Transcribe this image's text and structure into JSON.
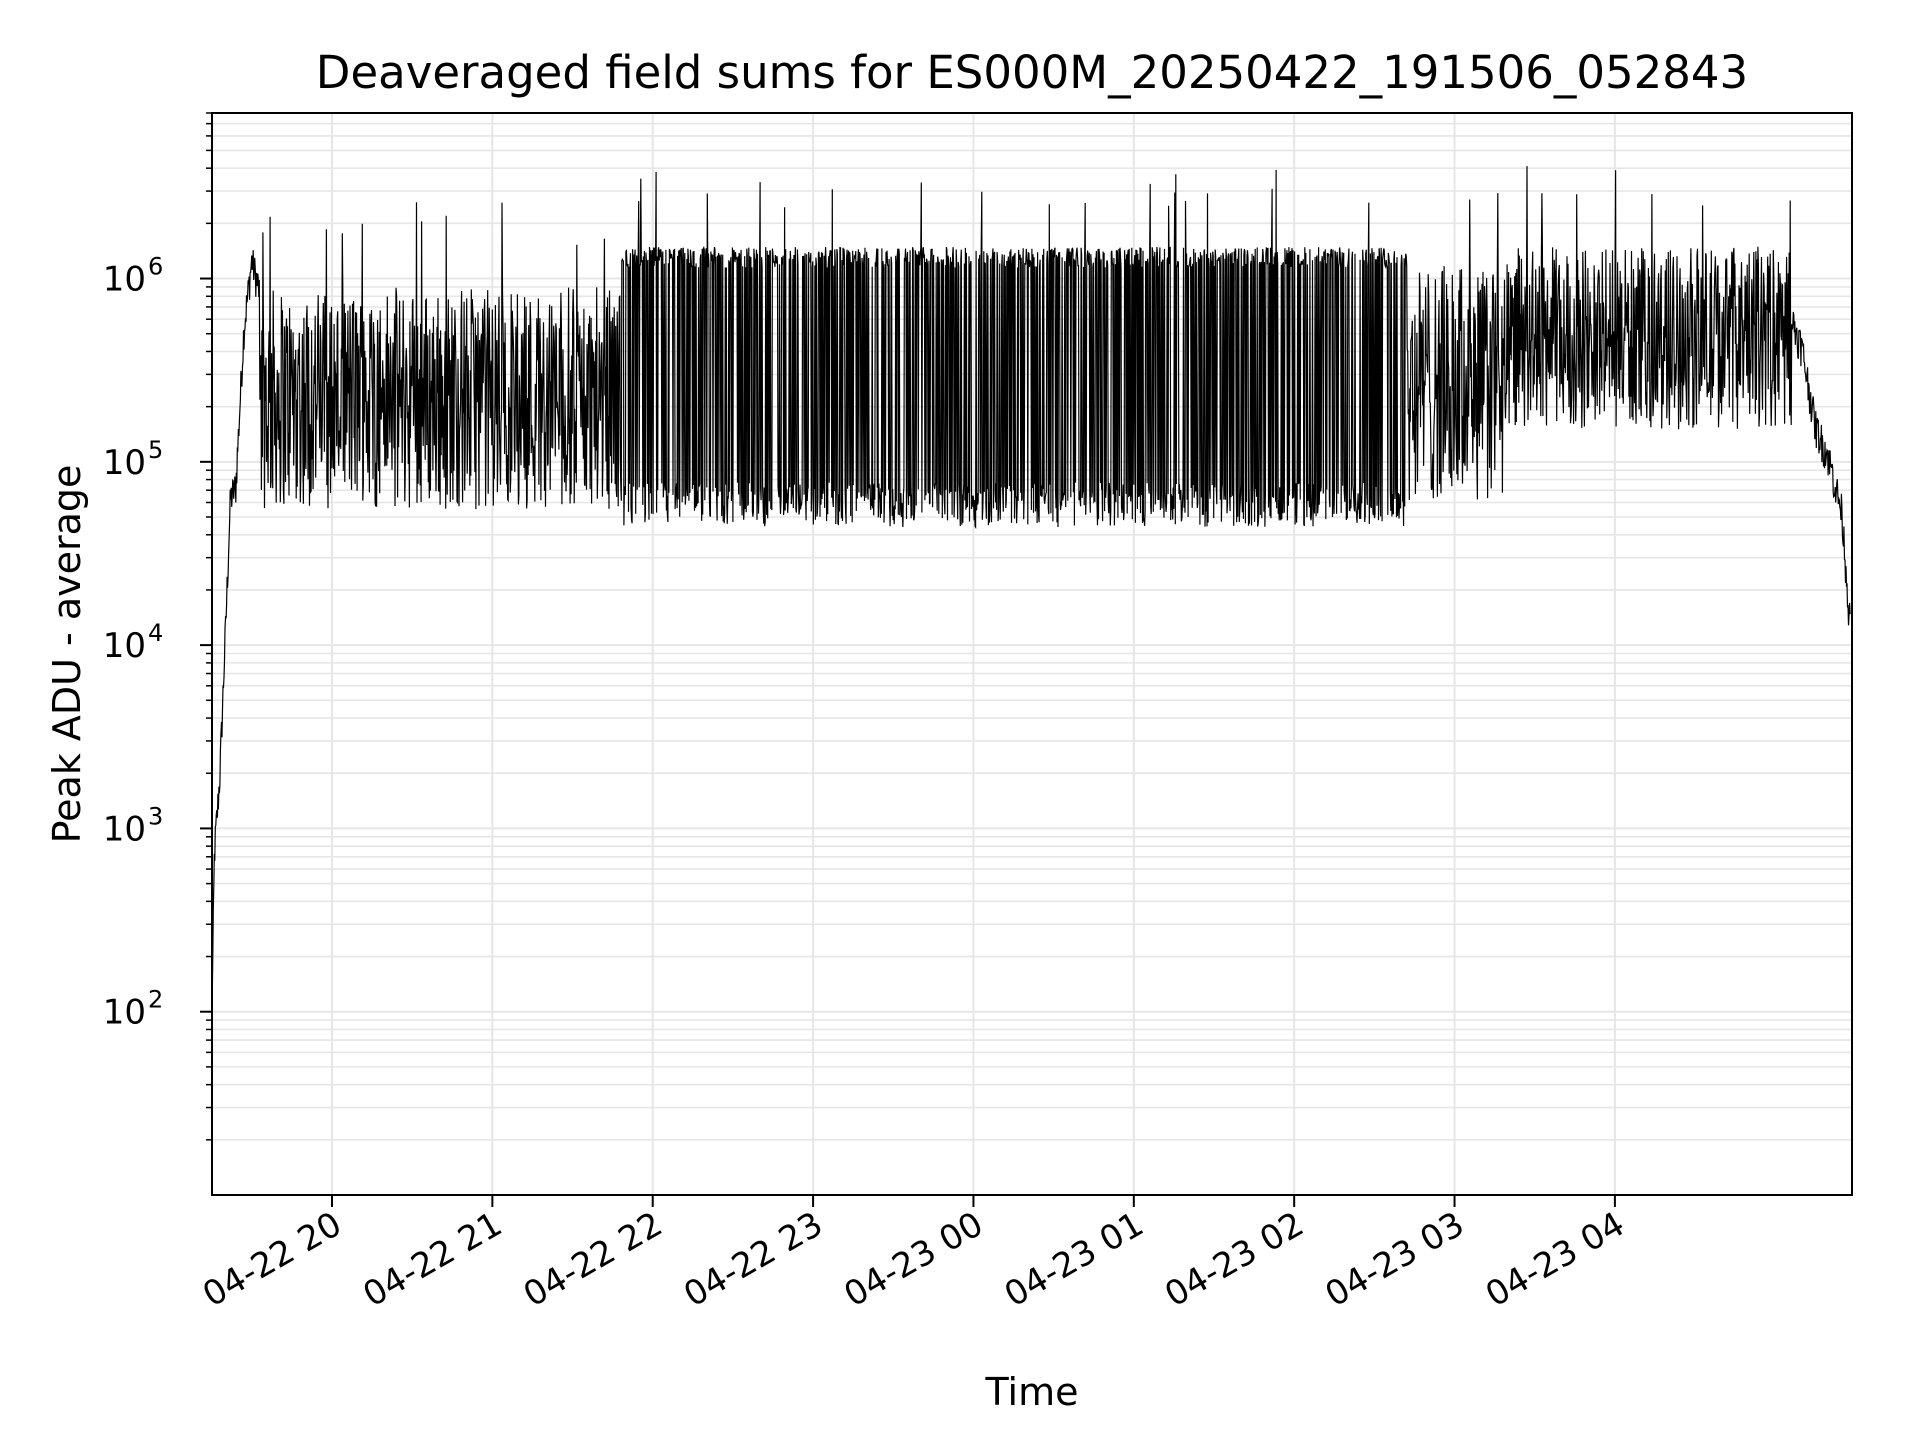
{
  "chart_data": {
    "type": "line",
    "title": "Deaveraged field sums for ES000M_20250422_191506_052843",
    "xlabel": "Time",
    "ylabel": "Peak ADU - average",
    "yscale": "log",
    "ylim": [
      10,
      8000000
    ],
    "xlim": [
      "2025-04-22 19:15:06",
      "2025-04-23 05:28:43"
    ],
    "grid": true,
    "line_color": "#000000",
    "grid_color": "#e6e6e6",
    "x_ticks": [
      {
        "value": "2025-04-22 20:00",
        "label": "04-22 20"
      },
      {
        "value": "2025-04-22 21:00",
        "label": "04-22 21"
      },
      {
        "value": "2025-04-22 22:00",
        "label": "04-22 22"
      },
      {
        "value": "2025-04-22 23:00",
        "label": "04-22 23"
      },
      {
        "value": "2025-04-23 00:00",
        "label": "04-23 00"
      },
      {
        "value": "2025-04-23 01:00",
        "label": "04-23 01"
      },
      {
        "value": "2025-04-23 02:00",
        "label": "04-23 02"
      },
      {
        "value": "2025-04-23 03:00",
        "label": "04-23 03"
      },
      {
        "value": "2025-04-23 04:00",
        "label": "04-23 04"
      }
    ],
    "y_ticks": [
      {
        "value": 100,
        "base": "10",
        "exp": "2"
      },
      {
        "value": 1000,
        "base": "10",
        "exp": "3"
      },
      {
        "value": 10000,
        "base": "10",
        "exp": "4"
      },
      {
        "value": 100000,
        "base": "10",
        "exp": "5"
      },
      {
        "value": 1000000,
        "base": "10",
        "exp": "6"
      }
    ],
    "series": [
      {
        "x": [
          "2025-04-22 19:15",
          "2025-04-22 19:16",
          "2025-04-22 19:18",
          "2025-04-22 19:20",
          "2025-04-22 19:22",
          "2025-04-22 19:24",
          "2025-04-22 19:27",
          "2025-04-22 19:30",
          "2025-04-22 19:33",
          "2025-04-22 19:36",
          "2025-04-22 19:39",
          "2025-04-22 19:42",
          "2025-04-22 19:45",
          "2025-04-22 19:50",
          "2025-04-22 20:00",
          "2025-04-22 20:15",
          "2025-04-22 20:30",
          "2025-04-22 20:45",
          "2025-04-22 21:00",
          "2025-04-22 21:15",
          "2025-04-22 21:30",
          "2025-04-22 21:45",
          "2025-04-22 22:00",
          "2025-04-22 22:15",
          "2025-04-22 22:30",
          "2025-04-22 22:45",
          "2025-04-22 23:00",
          "2025-04-22 23:15",
          "2025-04-22 23:30",
          "2025-04-22 23:45",
          "2025-04-23 00:00",
          "2025-04-23 00:15",
          "2025-04-23 00:30",
          "2025-04-23 00:45",
          "2025-04-23 01:00",
          "2025-04-23 01:15",
          "2025-04-23 01:30",
          "2025-04-23 01:45",
          "2025-04-23 02:00",
          "2025-04-23 02:15",
          "2025-04-23 02:30",
          "2025-04-23 02:45",
          "2025-04-23 03:00",
          "2025-04-23 03:15",
          "2025-04-23 03:30",
          "2025-04-23 03:45",
          "2025-04-23 04:00",
          "2025-04-23 04:15",
          "2025-04-23 04:30",
          "2025-04-23 04:45",
          "2025-04-23 05:00",
          "2025-04-23 05:10",
          "2025-04-23 05:15",
          "2025-04-23 05:20",
          "2025-04-23 05:25",
          "2025-04-23 05:28"
        ],
        "values": [
          80,
          700,
          1800,
          10000,
          60000,
          70000,
          500000,
          1200000,
          800000,
          600000,
          250000,
          180000,
          220000,
          150000,
          160000,
          140000,
          180000,
          120000,
          150000,
          110000,
          130000,
          100000,
          80000,
          500000,
          400000,
          350000,
          400000,
          400000,
          450000,
          400000,
          450000,
          400000,
          420000,
          380000,
          400000,
          420000,
          400000,
          380000,
          420000,
          400000,
          350000,
          300000,
          400000,
          500000,
          600000,
          450000,
          500000,
          500000,
          1000000,
          450000,
          1000000,
          400000,
          150000,
          100000,
          50000,
          12000
        ]
      }
    ]
  }
}
